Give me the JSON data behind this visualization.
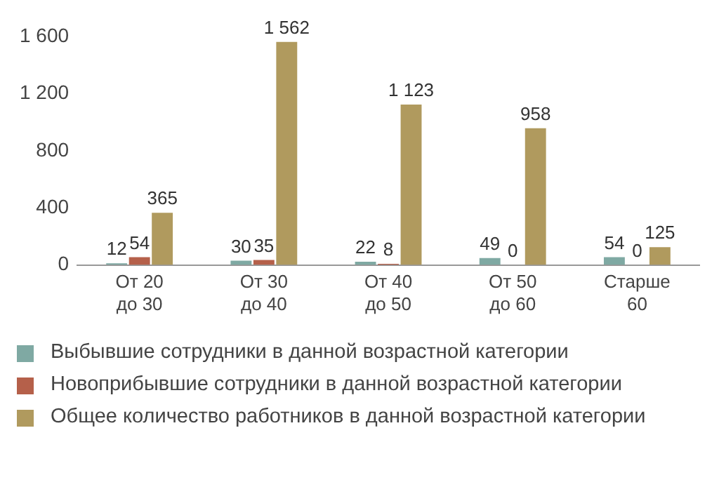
{
  "chart_data": {
    "type": "bar",
    "categories": [
      "От 20\nдо 30",
      "От 30\nдо 40",
      "От 40\nдо 50",
      "От 50\nдо 60",
      "Старше\n60"
    ],
    "series": [
      {
        "name": "Выбывшие сотрудники в данной возрастной категории",
        "color": "#7fa9a3",
        "values": [
          12,
          30,
          22,
          49,
          54
        ],
        "value_labels": [
          "12",
          "30",
          "22",
          "49",
          "54"
        ]
      },
      {
        "name": "Новоприбывшие сотрудники в данной возрастной категории",
        "color": "#b5604a",
        "values": [
          54,
          35,
          8,
          0,
          0
        ],
        "value_labels": [
          "54",
          "35",
          "8",
          "0",
          "0"
        ]
      },
      {
        "name": "Общее количество работников в данной возрастной категории",
        "color": "#b09a5e",
        "values": [
          365,
          1562,
          1123,
          958,
          125
        ],
        "value_labels": [
          "365",
          "1 562",
          "1 123",
          "958",
          "125"
        ]
      }
    ],
    "ylim": [
      0,
      1600
    ],
    "yticks": [
      0,
      400,
      800,
      {
        "value": 1200,
        "label": "1 200"
      },
      {
        "value": 1600,
        "label": "1 600"
      }
    ],
    "grid": false,
    "legend": "bottom"
  }
}
